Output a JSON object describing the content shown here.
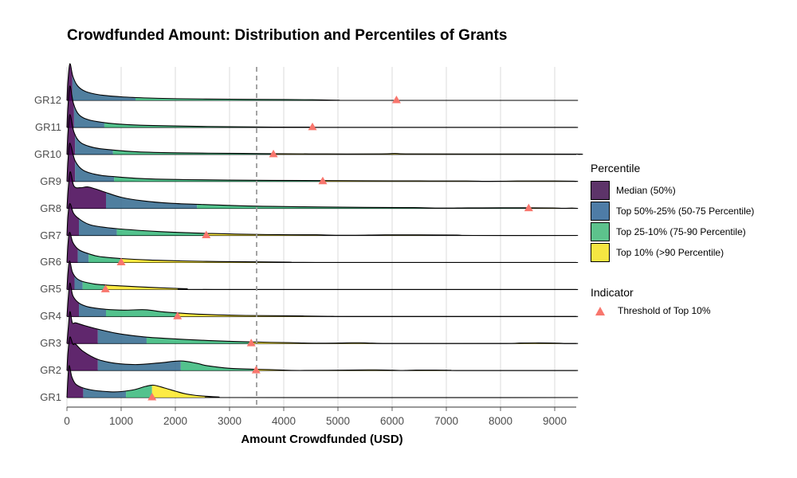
{
  "title": "Crowdfunded Amount: Distribution and Percentiles of Grants",
  "chart_data": {
    "type": "area",
    "subtype": "ridgeline",
    "title": "Crowdfunded Amount: Distribution and Percentiles of Grants",
    "xlabel": "Amount Crowdfunded (USD)",
    "ylabel": "",
    "x_ticks": [
      0,
      1000,
      2000,
      3000,
      4000,
      5000,
      6000,
      7000,
      8000,
      9000
    ],
    "xlim": [
      0,
      9430
    ],
    "grid": "vertical-only",
    "dashed_vline_x": 3500,
    "legend_position": "right",
    "palette": {
      "median_fill": "#440154",
      "p50_75_fill": "#31688E",
      "p75_90_fill": "#35B779",
      "top10_fill": "#FDE725",
      "fill_opacity": 0.85,
      "outline": "#000000",
      "indicator": "#F8766D",
      "gridline": "#DBDBDB",
      "dashed_line": "#9B9B9B"
    },
    "groups": [
      {
        "label": "GR12",
        "p50": 100,
        "p75": 1265,
        "top10_threshold": 6080,
        "density": [
          [
            0,
            0
          ],
          [
            20,
            26
          ],
          [
            55,
            46
          ],
          [
            110,
            30
          ],
          [
            200,
            18
          ],
          [
            350,
            11
          ],
          [
            600,
            7
          ],
          [
            1000,
            4.5
          ],
          [
            1500,
            3
          ],
          [
            2200,
            2
          ],
          [
            3000,
            1.5
          ],
          [
            3600,
            1.2
          ],
          [
            4530,
            0.8
          ],
          [
            5000,
            0.2
          ],
          [
            5400,
            0
          ],
          [
            9430,
            0
          ]
        ]
      },
      {
        "label": "GR11",
        "p50": 130,
        "p75": 690,
        "top10_threshold": 4530,
        "density": [
          [
            0,
            0
          ],
          [
            20,
            28
          ],
          [
            55,
            52
          ],
          [
            120,
            30
          ],
          [
            220,
            16
          ],
          [
            400,
            9.5
          ],
          [
            690,
            6
          ],
          [
            1000,
            4
          ],
          [
            1500,
            2.5
          ],
          [
            2270,
            1.5
          ],
          [
            3000,
            0.8
          ],
          [
            3800,
            0.4
          ],
          [
            4530,
            0.3
          ],
          [
            5000,
            0
          ],
          [
            9430,
            0
          ]
        ]
      },
      {
        "label": "GR10",
        "p50": 150,
        "p75": 850,
        "top10_threshold": 3810,
        "density": [
          [
            0,
            0
          ],
          [
            20,
            28
          ],
          [
            55,
            50
          ],
          [
            130,
            28
          ],
          [
            250,
            15
          ],
          [
            500,
            8.5
          ],
          [
            850,
            5.5
          ],
          [
            1300,
            3.2
          ],
          [
            2000,
            2
          ],
          [
            3250,
            1.2
          ],
          [
            3810,
            0.9
          ],
          [
            4800,
            0.6
          ],
          [
            5800,
            0.6
          ],
          [
            6050,
            1.1
          ],
          [
            6300,
            0.6
          ],
          [
            7500,
            0.5
          ],
          [
            9350,
            0.4
          ],
          [
            9430,
            0
          ]
        ]
      },
      {
        "label": "GR9",
        "p50": 150,
        "p75": 870,
        "top10_threshold": 4720,
        "density": [
          [
            0,
            0
          ],
          [
            20,
            27
          ],
          [
            55,
            48
          ],
          [
            150,
            26
          ],
          [
            300,
            14
          ],
          [
            550,
            8.5
          ],
          [
            870,
            6
          ],
          [
            1400,
            3.5
          ],
          [
            2200,
            2.2
          ],
          [
            3520,
            1.4
          ],
          [
            4720,
            1
          ],
          [
            5500,
            0.8
          ],
          [
            6500,
            0.6
          ],
          [
            7370,
            0.5
          ],
          [
            7800,
            0.1
          ],
          [
            8370,
            0.5
          ],
          [
            9000,
            0.5
          ],
          [
            9350,
            0.3
          ],
          [
            9430,
            0
          ]
        ]
      },
      {
        "label": "GR8",
        "p50": 720,
        "p75": 2400,
        "top10_threshold": 8520,
        "density": [
          [
            0,
            0
          ],
          [
            25,
            26
          ],
          [
            60,
            46
          ],
          [
            130,
            28
          ],
          [
            250,
            26
          ],
          [
            380,
            27
          ],
          [
            550,
            24
          ],
          [
            720,
            20
          ],
          [
            1000,
            14
          ],
          [
            1400,
            9.5
          ],
          [
            1900,
            6.5
          ],
          [
            2450,
            5
          ],
          [
            3100,
            3.5
          ],
          [
            3800,
            2.5
          ],
          [
            4700,
            1.8
          ],
          [
            5500,
            1.3
          ],
          [
            6400,
            1
          ],
          [
            6900,
            0.4
          ],
          [
            7400,
            0.7
          ],
          [
            8000,
            0.8
          ],
          [
            8420,
            0.8
          ],
          [
            8960,
            0.6
          ],
          [
            9150,
            0.2
          ],
          [
            9320,
            0.4
          ],
          [
            9430,
            0
          ]
        ]
      },
      {
        "label": "GR7",
        "p50": 220,
        "p75": 920,
        "top10_threshold": 2570,
        "density": [
          [
            0,
            0
          ],
          [
            20,
            26
          ],
          [
            55,
            40
          ],
          [
            120,
            28
          ],
          [
            220,
            21
          ],
          [
            400,
            14
          ],
          [
            600,
            11
          ],
          [
            920,
            8.5
          ],
          [
            1200,
            7
          ],
          [
            1700,
            4.8
          ],
          [
            2200,
            3.4
          ],
          [
            2570,
            2.6
          ],
          [
            3200,
            1.6
          ],
          [
            3900,
            1
          ],
          [
            4600,
            0.8
          ],
          [
            5100,
            0.2
          ],
          [
            5870,
            0.7
          ],
          [
            6500,
            0.7
          ],
          [
            7190,
            0.4
          ],
          [
            7500,
            0
          ],
          [
            9430,
            0
          ]
        ]
      },
      {
        "label": "GR6",
        "p50": 200,
        "p75": 400,
        "top10_threshold": 1000,
        "density": [
          [
            0,
            0
          ],
          [
            20,
            24
          ],
          [
            50,
            38
          ],
          [
            110,
            25
          ],
          [
            220,
            16
          ],
          [
            400,
            11
          ],
          [
            600,
            7.5
          ],
          [
            1000,
            5
          ],
          [
            1500,
            3.2
          ],
          [
            2100,
            2
          ],
          [
            2800,
            1.2
          ],
          [
            3500,
            0.8
          ],
          [
            4100,
            0.4
          ],
          [
            4600,
            0
          ],
          [
            9430,
            0
          ]
        ]
      },
      {
        "label": "GR5",
        "p50": 140,
        "p75": 290,
        "top10_threshold": 710,
        "density": [
          [
            0,
            0
          ],
          [
            20,
            22
          ],
          [
            50,
            36
          ],
          [
            100,
            22
          ],
          [
            180,
            14
          ],
          [
            290,
            10
          ],
          [
            500,
            7
          ],
          [
            740,
            5.5
          ],
          [
            1000,
            4.5
          ],
          [
            1300,
            3.5
          ],
          [
            1700,
            2.2
          ],
          [
            2200,
            1
          ],
          [
            2700,
            0
          ],
          [
            9430,
            0
          ]
        ]
      },
      {
        "label": "GR4",
        "p50": 220,
        "p75": 720,
        "top10_threshold": 2040,
        "density": [
          [
            0,
            0
          ],
          [
            25,
            24
          ],
          [
            55,
            42
          ],
          [
            110,
            26
          ],
          [
            220,
            17
          ],
          [
            400,
            12
          ],
          [
            720,
            9
          ],
          [
            1050,
            8
          ],
          [
            1440,
            8.5
          ],
          [
            1750,
            6
          ],
          [
            2040,
            4.5
          ],
          [
            2400,
            3
          ],
          [
            2800,
            2
          ],
          [
            3300,
            1.3
          ],
          [
            4350,
            0.7
          ],
          [
            4900,
            0.2
          ],
          [
            5300,
            0
          ],
          [
            9430,
            0
          ]
        ]
      },
      {
        "label": "GR3",
        "p50": 570,
        "p75": 1470,
        "top10_threshold": 3400,
        "density": [
          [
            0,
            0
          ],
          [
            25,
            20
          ],
          [
            55,
            40
          ],
          [
            100,
            26
          ],
          [
            160,
            26
          ],
          [
            300,
            23
          ],
          [
            570,
            18
          ],
          [
            900,
            13
          ],
          [
            1200,
            10
          ],
          [
            1470,
            8
          ],
          [
            1800,
            6.5
          ],
          [
            2200,
            5
          ],
          [
            2600,
            3.8
          ],
          [
            3000,
            2.8
          ],
          [
            3400,
            2
          ],
          [
            4030,
            1.1
          ],
          [
            4600,
            0.4
          ],
          [
            5160,
            0.8
          ],
          [
            5400,
            0.9
          ],
          [
            5630,
            0.5
          ],
          [
            6000,
            0.1
          ],
          [
            8000,
            0.1
          ],
          [
            8350,
            0.6
          ],
          [
            8700,
            0.8
          ],
          [
            9090,
            0.4
          ],
          [
            9200,
            0
          ],
          [
            9430,
            0
          ]
        ]
      },
      {
        "label": "GR2",
        "p50": 570,
        "p75": 2100,
        "top10_threshold": 3490,
        "density": [
          [
            0,
            0
          ],
          [
            20,
            24
          ],
          [
            55,
            42
          ],
          [
            110,
            33
          ],
          [
            160,
            33
          ],
          [
            300,
            24
          ],
          [
            570,
            14
          ],
          [
            900,
            9
          ],
          [
            1300,
            7.5
          ],
          [
            1700,
            9.5
          ],
          [
            2100,
            12
          ],
          [
            2400,
            9
          ],
          [
            2590,
            6
          ],
          [
            3000,
            2.8
          ],
          [
            3490,
            1.6
          ],
          [
            3880,
            0.8
          ],
          [
            4300,
            0.1
          ],
          [
            5380,
            0.7
          ],
          [
            5700,
            0.8
          ],
          [
            6020,
            0.4
          ],
          [
            6200,
            0.1
          ],
          [
            6440,
            0.5
          ],
          [
            6800,
            0.6
          ],
          [
            7070,
            0.3
          ],
          [
            7300,
            0
          ],
          [
            9430,
            0
          ]
        ]
      },
      {
        "label": "GR1",
        "p50": 300,
        "p75": 1090,
        "top10_threshold": 1570,
        "density": [
          [
            0,
            0
          ],
          [
            15,
            20
          ],
          [
            40,
            40
          ],
          [
            90,
            26
          ],
          [
            160,
            17
          ],
          [
            300,
            12
          ],
          [
            500,
            9
          ],
          [
            800,
            7.2
          ],
          [
            1000,
            7.5
          ],
          [
            1250,
            10
          ],
          [
            1450,
            14
          ],
          [
            1600,
            15.5
          ],
          [
            1800,
            12
          ],
          [
            2000,
            8
          ],
          [
            2200,
            4.5
          ],
          [
            2450,
            2.2
          ],
          [
            2800,
            0.7
          ],
          [
            3100,
            0
          ],
          [
            9430,
            0
          ]
        ]
      }
    ]
  },
  "legend": {
    "percentile_title": "Percentile",
    "items": [
      {
        "label": "Median (50%)",
        "color": "#5D3469"
      },
      {
        "label": "Top 50%-25% (50-75 Percentile)",
        "color": "#4E7CA6"
      },
      {
        "label": "Top 25-10% (75-90 Percentile)",
        "color": "#5DC28C"
      },
      {
        "label": "Top 10% (>90 Percentile)",
        "color": "#F5E642"
      }
    ],
    "indicator_title": "Indicator",
    "indicator_item": {
      "label": "Threshold of Top 10%",
      "color": "#F8766D",
      "marker": "triangle-up-icon"
    }
  }
}
